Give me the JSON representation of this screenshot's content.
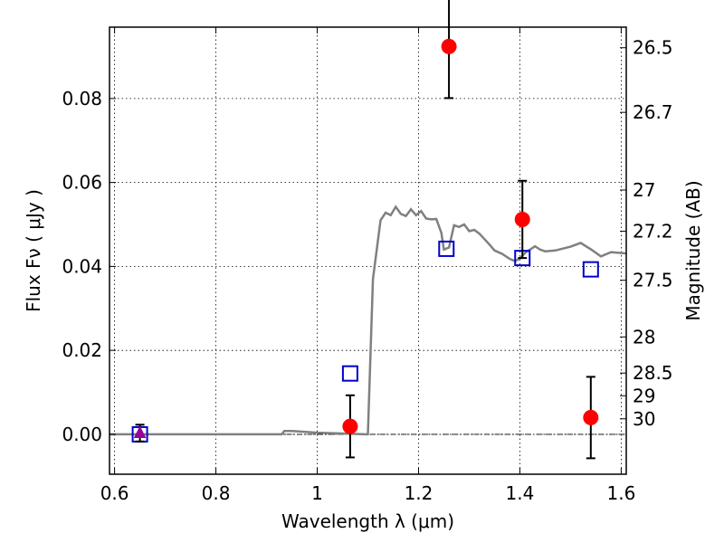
{
  "chart_data": {
    "type": "scatter",
    "xlabel": "Wavelength  λ (μm)",
    "ylabel": "Flux  Fν  ( μJy )",
    "ylabel_right": "Magnitude (AB)",
    "xlim": [
      0.59,
      1.61
    ],
    "ylim": [
      -0.0095,
      0.097
    ],
    "grid": true,
    "x_ticks": [
      0.6,
      0.8,
      1.0,
      1.2,
      1.4,
      1.6
    ],
    "x_tick_labels": [
      "0.6",
      "0.8",
      "1",
      "1.2",
      "1.4",
      "1.6"
    ],
    "y_ticks": [
      0.0,
      0.02,
      0.04,
      0.06,
      0.08
    ],
    "y_tick_labels": [
      "0.00",
      "0.02",
      "0.04",
      "0.06",
      "0.08"
    ],
    "right_ticks": [
      {
        "label": "26.5",
        "flux": 0.0921
      },
      {
        "label": "26.7",
        "flux": 0.0767
      },
      {
        "label": "27",
        "flux": 0.0582
      },
      {
        "label": "27.2",
        "flux": 0.0484
      },
      {
        "label": "27.5",
        "flux": 0.0367
      },
      {
        "label": "28",
        "flux": 0.0232
      },
      {
        "label": "28.5",
        "flux": 0.0146
      },
      {
        "label": "29",
        "flux": 0.0092
      },
      {
        "label": "30",
        "flux": 0.0037
      }
    ],
    "series": [
      {
        "marker": "circle",
        "color": "#ff0000",
        "points": [
          {
            "x": 1.065,
            "y": 0.0019,
            "yerr": 0.0074
          },
          {
            "x": 1.26,
            "y": 0.0924,
            "yerr": 0.0123
          },
          {
            "x": 1.405,
            "y": 0.0512,
            "yerr": 0.0092
          },
          {
            "x": 1.54,
            "y": 0.004,
            "yerr": 0.0097
          }
        ]
      },
      {
        "marker": "square-open",
        "color": "#0000cc",
        "points": [
          {
            "x": 0.65,
            "y": 0.0
          },
          {
            "x": 1.065,
            "y": 0.0145
          },
          {
            "x": 1.255,
            "y": 0.0442
          },
          {
            "x": 1.405,
            "y": 0.042
          },
          {
            "x": 1.54,
            "y": 0.0393
          }
        ]
      },
      {
        "marker": "triangle",
        "color": "#990099",
        "points": [
          {
            "x": 0.65,
            "y": 0.0003,
            "yerr": 0.002
          }
        ]
      },
      {
        "marker": "line",
        "color": "#808080",
        "points": [
          {
            "x": 0.59,
            "y": 0.0
          },
          {
            "x": 0.9,
            "y": 0.0
          },
          {
            "x": 0.93,
            "y": 0.0
          },
          {
            "x": 0.935,
            "y": 0.0008
          },
          {
            "x": 0.95,
            "y": 0.0008
          },
          {
            "x": 1.0,
            "y": 0.0004
          },
          {
            "x": 1.05,
            "y": 0.0002
          },
          {
            "x": 1.095,
            "y": 0.0
          },
          {
            "x": 1.1,
            "y": 0.0
          },
          {
            "x": 1.11,
            "y": 0.037
          },
          {
            "x": 1.125,
            "y": 0.051
          },
          {
            "x": 1.135,
            "y": 0.0528
          },
          {
            "x": 1.145,
            "y": 0.0522
          },
          {
            "x": 1.155,
            "y": 0.0542
          },
          {
            "x": 1.165,
            "y": 0.0525
          },
          {
            "x": 1.175,
            "y": 0.052
          },
          {
            "x": 1.185,
            "y": 0.0536
          },
          {
            "x": 1.195,
            "y": 0.0522
          },
          {
            "x": 1.205,
            "y": 0.0532
          },
          {
            "x": 1.215,
            "y": 0.0514
          },
          {
            "x": 1.225,
            "y": 0.0512
          },
          {
            "x": 1.235,
            "y": 0.0513
          },
          {
            "x": 1.245,
            "y": 0.048
          },
          {
            "x": 1.25,
            "y": 0.044
          },
          {
            "x": 1.26,
            "y": 0.0445
          },
          {
            "x": 1.27,
            "y": 0.0498
          },
          {
            "x": 1.28,
            "y": 0.0494
          },
          {
            "x": 1.29,
            "y": 0.05
          },
          {
            "x": 1.3,
            "y": 0.0484
          },
          {
            "x": 1.31,
            "y": 0.0487
          },
          {
            "x": 1.32,
            "y": 0.0478
          },
          {
            "x": 1.33,
            "y": 0.0465
          },
          {
            "x": 1.34,
            "y": 0.0452
          },
          {
            "x": 1.35,
            "y": 0.0438
          },
          {
            "x": 1.365,
            "y": 0.043
          },
          {
            "x": 1.38,
            "y": 0.0418
          },
          {
            "x": 1.39,
            "y": 0.0413
          },
          {
            "x": 1.4,
            "y": 0.0418
          },
          {
            "x": 1.41,
            "y": 0.0432
          },
          {
            "x": 1.43,
            "y": 0.0448
          },
          {
            "x": 1.44,
            "y": 0.044
          },
          {
            "x": 1.45,
            "y": 0.0436
          },
          {
            "x": 1.47,
            "y": 0.0438
          },
          {
            "x": 1.5,
            "y": 0.0447
          },
          {
            "x": 1.52,
            "y": 0.0456
          },
          {
            "x": 1.54,
            "y": 0.0441
          },
          {
            "x": 1.56,
            "y": 0.0424
          },
          {
            "x": 1.58,
            "y": 0.0434
          },
          {
            "x": 1.61,
            "y": 0.0431
          }
        ]
      }
    ],
    "zero_line": 0.0
  }
}
